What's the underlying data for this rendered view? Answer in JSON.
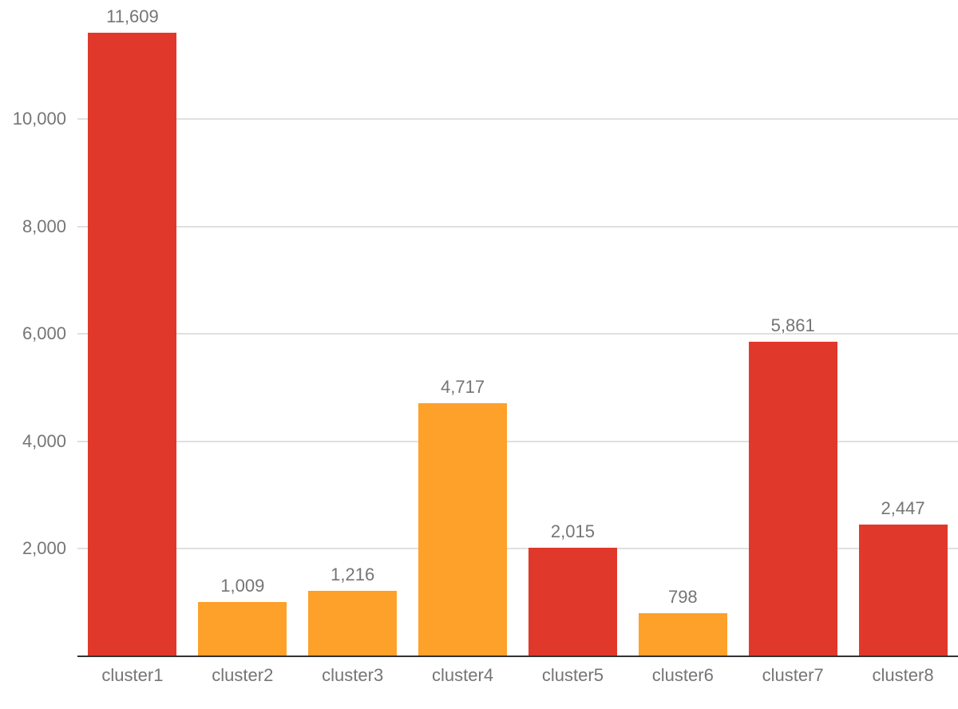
{
  "chart_data": {
    "type": "bar",
    "title": "",
    "xlabel": "",
    "ylabel": "",
    "categories": [
      "cluster1",
      "cluster2",
      "cluster3",
      "cluster4",
      "cluster5",
      "cluster6",
      "cluster7",
      "cluster8"
    ],
    "values": [
      11609,
      1009,
      1216,
      4717,
      2015,
      798,
      5861,
      2447
    ],
    "value_labels": [
      "11,609",
      "1,009",
      "1,216",
      "4,717",
      "2,015",
      "798",
      "5,861",
      "2,447"
    ],
    "bar_colors": [
      "#e0392b",
      "#fda12b",
      "#fda12b",
      "#fda12b",
      "#e0392b",
      "#fda12b",
      "#e0392b",
      "#e0392b"
    ],
    "ylim": [
      0,
      12213
    ],
    "yticks": [
      {
        "value": 2000,
        "label": "2,000"
      },
      {
        "value": 4000,
        "label": "4,000"
      },
      {
        "value": 6000,
        "label": "6,000"
      },
      {
        "value": 8000,
        "label": "8,000"
      },
      {
        "value": 10000,
        "label": "10,000"
      }
    ],
    "grid": true,
    "legend": "none",
    "colors": {
      "red": "#e0392b",
      "orange": "#fda12b",
      "gridline": "#e0e0e0",
      "axis_line": "#333333",
      "tick_label": "#757575",
      "value_label": "#757575",
      "background": "#ffffff"
    }
  }
}
